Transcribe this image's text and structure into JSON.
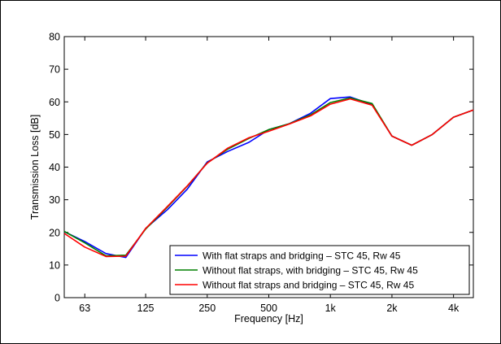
{
  "chart_data": {
    "type": "line",
    "xlabel": "Frequency [Hz]",
    "ylabel": "Transmission Loss [dB]",
    "x_scale": "log",
    "xlim": [
      50,
      5000
    ],
    "ylim": [
      0,
      80
    ],
    "x_ticks": [
      {
        "value": 63,
        "label": "63"
      },
      {
        "value": 125,
        "label": "125"
      },
      {
        "value": 250,
        "label": "250"
      },
      {
        "value": 500,
        "label": "500"
      },
      {
        "value": 1000,
        "label": "1k"
      },
      {
        "value": 2000,
        "label": "2k"
      },
      {
        "value": 4000,
        "label": "4k"
      }
    ],
    "y_ticks": [
      0,
      10,
      20,
      30,
      40,
      50,
      60,
      70,
      80
    ],
    "grid": false,
    "legend_position": "bottom-right",
    "x": [
      50,
      63,
      80,
      100,
      125,
      160,
      200,
      250,
      315,
      400,
      500,
      630,
      800,
      1000,
      1250,
      1600,
      2000,
      2500,
      3150,
      4000,
      5000
    ],
    "series": [
      {
        "name": "With flat straps and bridging – STC 45, Rw 45",
        "color": "#0000ff",
        "values": [
          20.2,
          17.2,
          13.5,
          12.3,
          21.2,
          27.0,
          33.3,
          41.6,
          44.8,
          47.6,
          51.5,
          53.3,
          56.5,
          61.0,
          61.5,
          59.2,
          49.5,
          46.7,
          50.0,
          55.3,
          57.5
        ]
      },
      {
        "name": "Without flat straps, with bridging – STC 45, Rw 45",
        "color": "#008000",
        "values": [
          20.3,
          16.8,
          12.8,
          13.0,
          21.0,
          27.8,
          34.2,
          41.3,
          45.5,
          48.8,
          51.5,
          53.3,
          56.0,
          59.8,
          61.2,
          59.5,
          49.5,
          46.7,
          50.0,
          55.3,
          57.5
        ]
      },
      {
        "name": "Without flat straps and bridging – STC 45, Rw 45",
        "color": "#ff0000",
        "values": [
          19.7,
          15.5,
          12.6,
          12.7,
          21.2,
          28.0,
          34.3,
          41.2,
          45.8,
          49.0,
          51.0,
          53.2,
          55.7,
          59.3,
          60.9,
          59.0,
          49.5,
          46.7,
          50.0,
          55.3,
          57.5
        ]
      }
    ]
  }
}
